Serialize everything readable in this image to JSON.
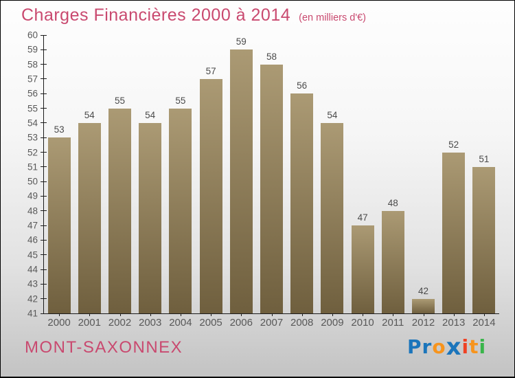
{
  "title": "Charges Financières 2000 à 2014",
  "subtitle": "(en milliers d'€)",
  "footer": {
    "commune": "MONT-SAXONNEX",
    "logo_name": "Proxiti",
    "logo_letters": [
      {
        "ch": "P",
        "color": "#1b75bb",
        "x": false
      },
      {
        "ch": "r",
        "color": "#1b75bb",
        "x": false
      },
      {
        "ch": "o",
        "color": "#f7941d",
        "x": false
      },
      {
        "ch": "x",
        "color": "#1b75bb",
        "x": true
      },
      {
        "ch": "i",
        "color": "#ef4123",
        "x": false
      },
      {
        "ch": "t",
        "color": "#f7941d",
        "x": false
      },
      {
        "ch": "i",
        "color": "#39b54a",
        "x": false
      }
    ]
  },
  "colors": {
    "title_pink": "#c9496f",
    "bar_top": "#ab9a74",
    "bar_bottom": "#6f5f3e",
    "axis": "#1a1a1a",
    "tick_label": "#585858",
    "value_label": "#4a4a4a"
  },
  "chart_data": {
    "type": "bar",
    "title": "Charges Financières 2000 à 2014",
    "subtitle": "(en milliers d'€)",
    "categories": [
      "2000",
      "2001",
      "2002",
      "2003",
      "2004",
      "2005",
      "2006",
      "2007",
      "2008",
      "2009",
      "2010",
      "2011",
      "2012",
      "2013",
      "2014"
    ],
    "values": [
      53,
      54,
      55,
      54,
      55,
      57,
      59,
      58,
      56,
      54,
      47,
      48,
      42,
      52,
      51
    ],
    "xlabel": "",
    "ylabel": "",
    "ylim": [
      41,
      60
    ],
    "ytick_step": 1,
    "grid": false,
    "legend": false,
    "bar_value_labels": true
  }
}
